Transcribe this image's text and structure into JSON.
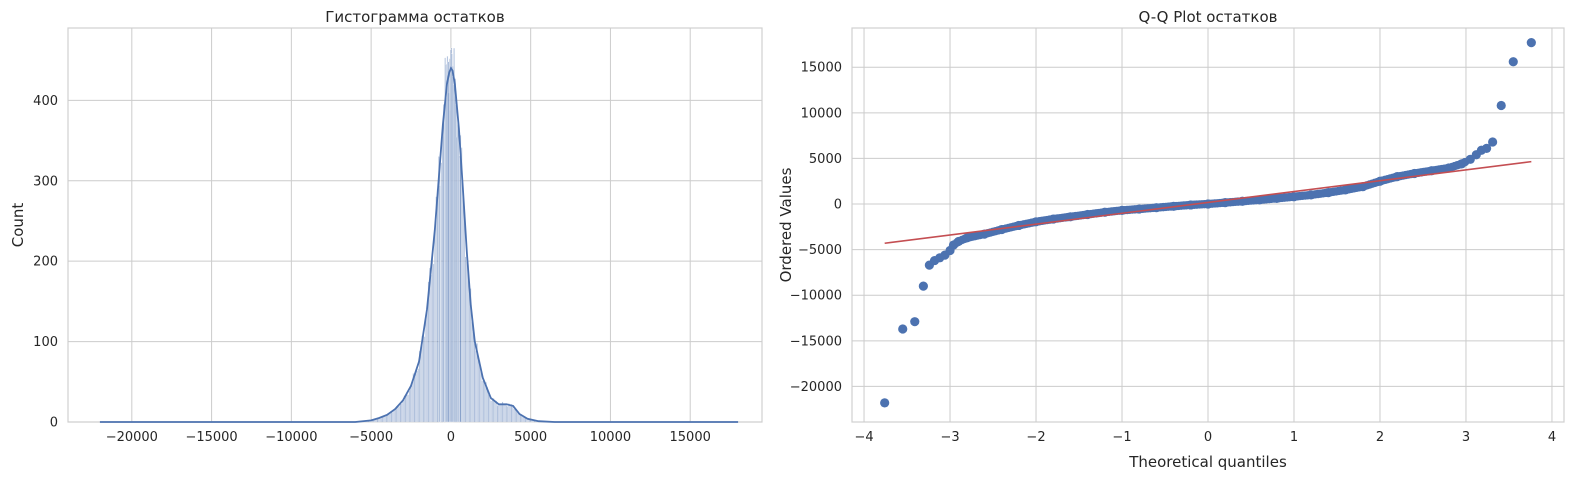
{
  "chart_data": [
    {
      "type": "bar",
      "title": "Гистограмма остатков",
      "xlabel": "",
      "ylabel": "Count",
      "xlim": [
        -24000,
        19500
      ],
      "ylim": [
        0,
        490
      ],
      "x_ticks": [
        -20000,
        -15000,
        -10000,
        -5000,
        0,
        5000,
        10000,
        15000
      ],
      "y_ticks": [
        0,
        100,
        200,
        300,
        400
      ],
      "grid": true,
      "colors": {
        "bars": "#4c72b0",
        "kde": "#4c72b0"
      },
      "kde_points": [
        [
          -22000,
          0
        ],
        [
          -6000,
          0
        ],
        [
          -5000,
          2
        ],
        [
          -4500,
          5
        ],
        [
          -4000,
          9
        ],
        [
          -3500,
          16
        ],
        [
          -3000,
          27
        ],
        [
          -2500,
          45
        ],
        [
          -2000,
          75
        ],
        [
          -1500,
          140
        ],
        [
          -1000,
          240
        ],
        [
          -750,
          305
        ],
        [
          -500,
          370
        ],
        [
          -250,
          420
        ],
        [
          -100,
          435
        ],
        [
          0,
          440
        ],
        [
          100,
          437
        ],
        [
          250,
          420
        ],
        [
          500,
          365
        ],
        [
          750,
          290
        ],
        [
          1000,
          210
        ],
        [
          1250,
          145
        ],
        [
          1500,
          100
        ],
        [
          2000,
          55
        ],
        [
          2500,
          30
        ],
        [
          3000,
          22
        ],
        [
          3500,
          22
        ],
        [
          3900,
          20
        ],
        [
          4300,
          10
        ],
        [
          4800,
          4
        ],
        [
          5500,
          1
        ],
        [
          6500,
          0
        ],
        [
          18000,
          0
        ]
      ],
      "bar_spikes": [
        [
          -700,
          330
        ],
        [
          -450,
          395
        ],
        [
          -300,
          445
        ],
        [
          -220,
          455
        ],
        [
          -150,
          448
        ],
        [
          -60,
          452
        ],
        [
          0,
          463
        ],
        [
          60,
          458
        ],
        [
          120,
          430
        ],
        [
          200,
          420
        ],
        [
          320,
          395
        ],
        [
          450,
          370
        ],
        [
          600,
          335
        ]
      ]
    },
    {
      "type": "scatter",
      "title": "Q-Q Plot остатков",
      "xlabel": "Theoretical quantiles",
      "ylabel": "Ordered Values",
      "xlim": [
        -4.14,
        4.14
      ],
      "ylim": [
        -23900,
        19300
      ],
      "x_ticks": [
        -4,
        -3,
        -2,
        -1,
        0,
        1,
        2,
        3,
        4
      ],
      "y_ticks": [
        -20000,
        -15000,
        -10000,
        -5000,
        0,
        5000,
        10000,
        15000
      ],
      "grid": true,
      "colors": {
        "points": "#4c72b0",
        "fit_line": "#c44e52"
      },
      "fit_line": {
        "x": [
          -3.76,
          3.76
        ],
        "y": [
          -4300,
          4650
        ]
      },
      "points": [
        [
          -3.76,
          -21800
        ],
        [
          -3.55,
          -13700
        ],
        [
          -3.41,
          -12900
        ],
        [
          -3.31,
          -9000
        ],
        [
          -3.24,
          -6700
        ],
        [
          -3.18,
          -6200
        ],
        [
          -3.12,
          -5900
        ],
        [
          -3.06,
          -5600
        ],
        [
          -3.0,
          -5100
        ],
        [
          -2.96,
          -4500
        ],
        [
          -2.9,
          -4100
        ],
        [
          -2.8,
          -3700
        ],
        [
          -2.6,
          -3300
        ],
        [
          -2.4,
          -2800
        ],
        [
          -2.2,
          -2350
        ],
        [
          -2.0,
          -1950
        ],
        [
          -1.8,
          -1650
        ],
        [
          -1.6,
          -1400
        ],
        [
          -1.4,
          -1150
        ],
        [
          -1.2,
          -900
        ],
        [
          -1.0,
          -700
        ],
        [
          -0.8,
          -550
        ],
        [
          -0.6,
          -400
        ],
        [
          -0.4,
          -250
        ],
        [
          -0.2,
          -100
        ],
        [
          0.0,
          0
        ],
        [
          0.2,
          150
        ],
        [
          0.4,
          300
        ],
        [
          0.6,
          450
        ],
        [
          0.8,
          620
        ],
        [
          1.0,
          800
        ],
        [
          1.2,
          1000
        ],
        [
          1.4,
          1250
        ],
        [
          1.6,
          1550
        ],
        [
          1.8,
          1900
        ],
        [
          2.0,
          2500
        ],
        [
          2.2,
          3000
        ],
        [
          2.4,
          3350
        ],
        [
          2.6,
          3650
        ],
        [
          2.8,
          3950
        ],
        [
          2.95,
          4400
        ],
        [
          3.05,
          4900
        ],
        [
          3.12,
          5400
        ],
        [
          3.18,
          5900
        ],
        [
          3.24,
          6100
        ],
        [
          3.31,
          6800
        ],
        [
          3.41,
          10800
        ],
        [
          3.55,
          15600
        ],
        [
          3.76,
          17700
        ]
      ]
    }
  ]
}
